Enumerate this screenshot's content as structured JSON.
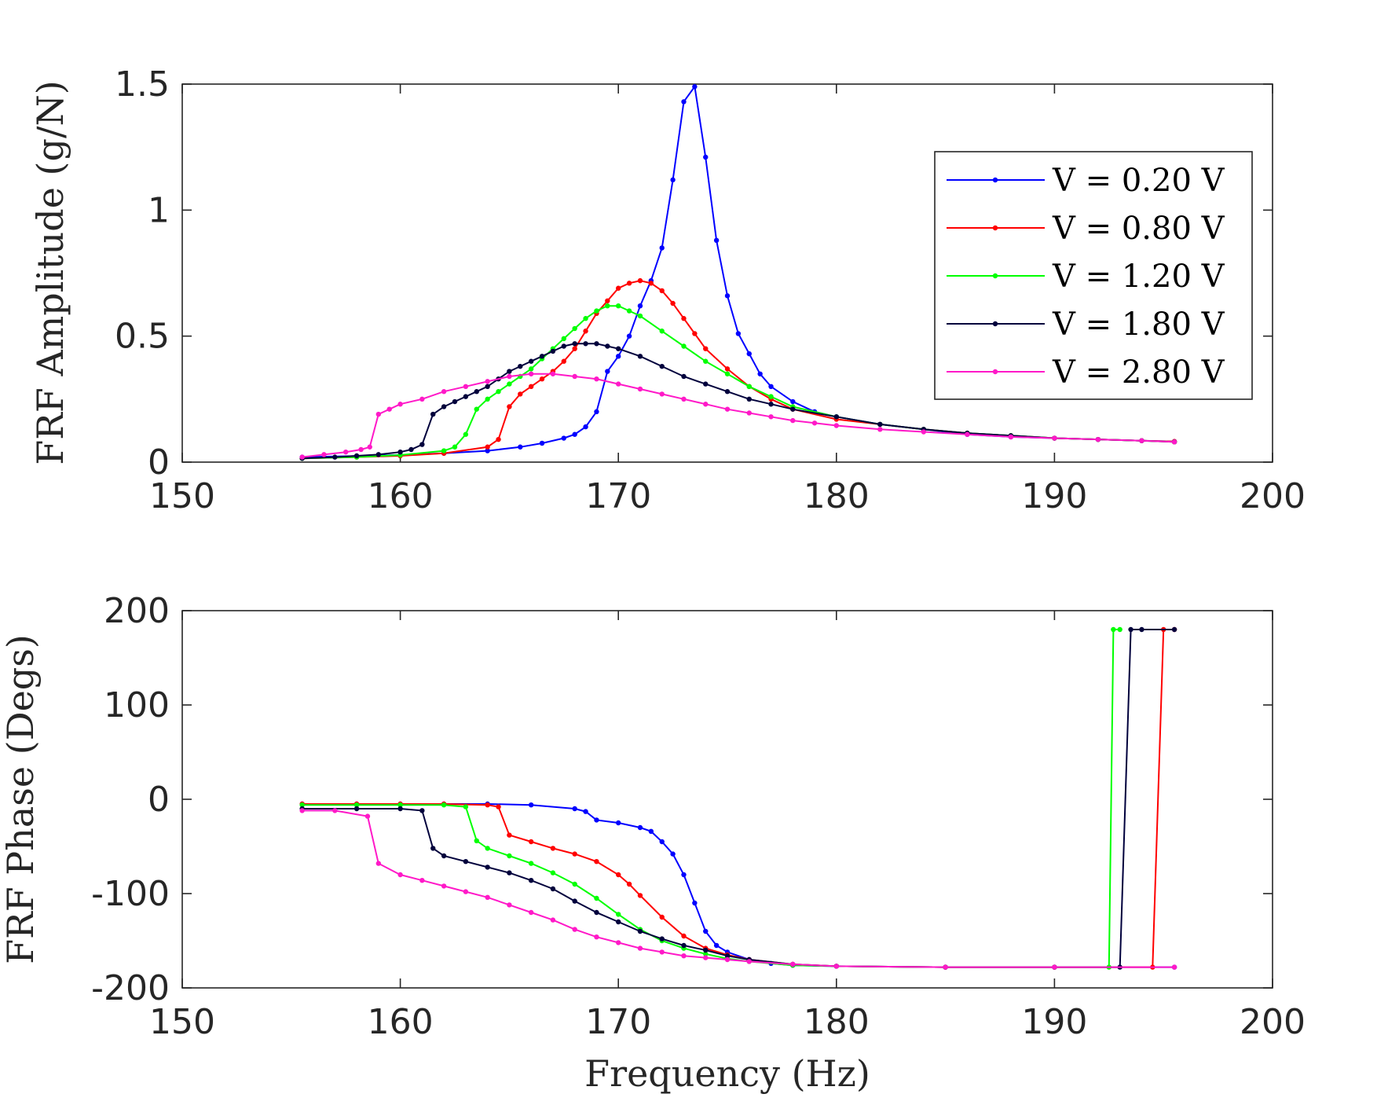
{
  "chart_data": [
    {
      "type": "line",
      "ylabel": "FRF Amplitude (g/N)",
      "xlabel": "",
      "xlim": [
        150,
        200
      ],
      "ylim": [
        0,
        1.5
      ],
      "xticks": [
        "150",
        "160",
        "170",
        "180",
        "190",
        "200"
      ],
      "yticks": [
        "0",
        "0.5",
        "1",
        "1.5"
      ],
      "grid": false,
      "legend_position": "top-right",
      "series": [
        {
          "name": "V = 0.20 V",
          "color": "#0000ff",
          "x": [
            155.5,
            158,
            160,
            162,
            164,
            165.5,
            166.5,
            167.5,
            168,
            168.5,
            169,
            169.5,
            170,
            170.5,
            171,
            171.5,
            172,
            172.5,
            173,
            173.5,
            174,
            174.5,
            175,
            175.5,
            176,
            176.5,
            177,
            178,
            179,
            180,
            182,
            184,
            186,
            188,
            190,
            192,
            194,
            195.5
          ],
          "y": [
            0.02,
            0.024,
            0.028,
            0.035,
            0.045,
            0.06,
            0.075,
            0.095,
            0.11,
            0.14,
            0.2,
            0.36,
            0.42,
            0.5,
            0.62,
            0.72,
            0.85,
            1.12,
            1.43,
            1.49,
            1.21,
            0.88,
            0.66,
            0.51,
            0.43,
            0.35,
            0.3,
            0.24,
            0.2,
            0.18,
            0.15,
            0.13,
            0.11,
            0.1,
            0.095,
            0.09,
            0.085,
            0.082
          ]
        },
        {
          "name": "V = 0.80 V",
          "color": "#ff0000",
          "x": [
            155.5,
            158,
            160,
            162,
            164,
            164.5,
            165,
            165.5,
            166,
            166.5,
            167,
            167.5,
            168,
            168.5,
            169,
            169.5,
            170,
            170.5,
            171,
            171.5,
            172,
            172.5,
            173,
            173.5,
            174,
            175,
            176,
            177,
            178,
            180,
            182,
            184,
            186,
            188,
            190,
            192,
            194,
            195.5
          ],
          "y": [
            0.015,
            0.02,
            0.025,
            0.035,
            0.06,
            0.09,
            0.22,
            0.27,
            0.3,
            0.33,
            0.36,
            0.4,
            0.45,
            0.52,
            0.59,
            0.64,
            0.69,
            0.71,
            0.72,
            0.71,
            0.68,
            0.63,
            0.57,
            0.51,
            0.45,
            0.37,
            0.3,
            0.25,
            0.21,
            0.17,
            0.15,
            0.13,
            0.115,
            0.105,
            0.095,
            0.09,
            0.085,
            0.082
          ]
        },
        {
          "name": "V = 1.20 V",
          "color": "#00ff00",
          "x": [
            155.5,
            158,
            160,
            162,
            162.5,
            163,
            163.5,
            164,
            164.5,
            165,
            165.5,
            166,
            166.5,
            167,
            167.5,
            168,
            168.5,
            169,
            169.5,
            170,
            170.5,
            171,
            172,
            173,
            174,
            175,
            176,
            177,
            178,
            180,
            182,
            184,
            186,
            188,
            190,
            192,
            194,
            195.5
          ],
          "y": [
            0.015,
            0.02,
            0.028,
            0.045,
            0.06,
            0.11,
            0.21,
            0.25,
            0.28,
            0.31,
            0.34,
            0.37,
            0.41,
            0.45,
            0.49,
            0.53,
            0.57,
            0.6,
            0.62,
            0.62,
            0.6,
            0.58,
            0.52,
            0.46,
            0.4,
            0.35,
            0.3,
            0.26,
            0.22,
            0.18,
            0.15,
            0.13,
            0.115,
            0.105,
            0.095,
            0.09,
            0.085,
            0.08
          ]
        },
        {
          "name": "V = 1.80 V",
          "color": "#00003c",
          "x": [
            155.5,
            157,
            158,
            159,
            160,
            160.5,
            161,
            161.5,
            162,
            162.5,
            163,
            163.5,
            164,
            164.5,
            165,
            165.5,
            166,
            166.5,
            167,
            167.5,
            168,
            168.5,
            169,
            169.5,
            170,
            171,
            172,
            173,
            174,
            175,
            176,
            177,
            178,
            180,
            182,
            184,
            186,
            188,
            190,
            192,
            194,
            195.5
          ],
          "y": [
            0.015,
            0.02,
            0.025,
            0.03,
            0.04,
            0.05,
            0.07,
            0.19,
            0.22,
            0.24,
            0.26,
            0.28,
            0.3,
            0.33,
            0.36,
            0.38,
            0.4,
            0.42,
            0.44,
            0.46,
            0.47,
            0.47,
            0.47,
            0.46,
            0.45,
            0.42,
            0.38,
            0.34,
            0.31,
            0.28,
            0.25,
            0.23,
            0.21,
            0.18,
            0.15,
            0.13,
            0.115,
            0.105,
            0.095,
            0.09,
            0.085,
            0.08
          ]
        },
        {
          "name": "V = 2.80 V",
          "color": "#ff19c8",
          "x": [
            155.5,
            156.5,
            157.5,
            158.2,
            158.6,
            159,
            159.5,
            160,
            161,
            162,
            163,
            164,
            165,
            166,
            167,
            168,
            169,
            170,
            171,
            172,
            173,
            174,
            175,
            176,
            177,
            178,
            179,
            180,
            182,
            184,
            186,
            188,
            190,
            192,
            194,
            195.5
          ],
          "y": [
            0.02,
            0.03,
            0.04,
            0.05,
            0.06,
            0.19,
            0.21,
            0.23,
            0.25,
            0.28,
            0.3,
            0.32,
            0.34,
            0.35,
            0.35,
            0.34,
            0.33,
            0.31,
            0.29,
            0.27,
            0.25,
            0.23,
            0.21,
            0.195,
            0.18,
            0.165,
            0.155,
            0.145,
            0.13,
            0.12,
            0.11,
            0.1,
            0.095,
            0.09,
            0.085,
            0.08
          ]
        }
      ]
    },
    {
      "type": "line",
      "ylabel": "FRF Phase (Degs)",
      "xlabel": "Frequency (Hz)",
      "xlim": [
        150,
        200
      ],
      "ylim": [
        -200,
        200
      ],
      "xticks": [
        "150",
        "160",
        "170",
        "180",
        "190",
        "200"
      ],
      "yticks": [
        "-200",
        "-100",
        "0",
        "100",
        "200"
      ],
      "grid": false,
      "series": [
        {
          "name": "V = 0.20 V",
          "color": "#0000ff",
          "x": [
            155.5,
            158,
            160,
            162,
            164,
            166,
            168,
            168.5,
            169,
            170,
            171,
            171.5,
            172,
            172.5,
            173,
            173.5,
            174,
            174.5,
            175,
            176,
            177,
            178,
            180,
            185,
            190,
            195.5
          ],
          "y": [
            -5,
            -5,
            -5,
            -5,
            -5,
            -6,
            -10,
            -13,
            -22,
            -25,
            -30,
            -34,
            -45,
            -58,
            -80,
            -110,
            -140,
            -155,
            -162,
            -170,
            -174,
            -176,
            -177,
            -178,
            -178,
            -178
          ]
        },
        {
          "name": "V = 0.80 V",
          "color": "#ff0000",
          "x": [
            155.5,
            158,
            160,
            162,
            164,
            164.5,
            165,
            166,
            167,
            168,
            169,
            170,
            170.5,
            171,
            172,
            173,
            174,
            175,
            176,
            178,
            180,
            185,
            190,
            194.5,
            195,
            195.5
          ],
          "y": [
            -5,
            -5,
            -5,
            -5,
            -6,
            -8,
            -38,
            -45,
            -52,
            -58,
            -66,
            -80,
            -90,
            -102,
            -125,
            -145,
            -158,
            -165,
            -170,
            -175,
            -177,
            -178,
            -178,
            -178,
            180,
            180
          ]
        },
        {
          "name": "V = 1.20 V",
          "color": "#00ff00",
          "x": [
            155.5,
            158,
            160,
            162,
            163,
            163.5,
            164,
            165,
            166,
            167,
            168,
            169,
            170,
            171,
            172,
            173,
            174,
            175,
            176,
            178,
            180,
            185,
            190,
            192.5,
            192.7,
            193
          ],
          "y": [
            -6,
            -6,
            -6,
            -6,
            -8,
            -44,
            -52,
            -60,
            -68,
            -78,
            -90,
            -105,
            -122,
            -138,
            -150,
            -158,
            -164,
            -169,
            -172,
            -176,
            -177,
            -178,
            -178,
            -178,
            180,
            180
          ]
        },
        {
          "name": "V = 1.80 V",
          "color": "#00003c",
          "x": [
            155.5,
            158,
            160,
            161,
            161.5,
            162,
            163,
            164,
            165,
            166,
            167,
            168,
            169,
            170,
            171,
            172,
            173,
            174,
            175,
            176,
            178,
            180,
            185,
            190,
            193,
            193.5,
            194,
            195.5
          ],
          "y": [
            -10,
            -10,
            -10,
            -12,
            -52,
            -60,
            -66,
            -72,
            -78,
            -86,
            -95,
            -108,
            -120,
            -130,
            -140,
            -148,
            -155,
            -160,
            -166,
            -170,
            -175,
            -177,
            -178,
            -178,
            -178,
            180,
            180,
            180
          ]
        },
        {
          "name": "V = 2.80 V",
          "color": "#ff19c8",
          "x": [
            155.5,
            157,
            158.5,
            159,
            160,
            161,
            162,
            163,
            164,
            165,
            166,
            167,
            168,
            169,
            170,
            171,
            172,
            173,
            174,
            175,
            176,
            178,
            180,
            185,
            190,
            195.5
          ],
          "y": [
            -12,
            -12,
            -18,
            -68,
            -80,
            -86,
            -92,
            -98,
            -104,
            -112,
            -120,
            -128,
            -138,
            -146,
            -152,
            -158,
            -162,
            -166,
            -168,
            -170,
            -172,
            -175,
            -177,
            -178,
            -178,
            -178
          ]
        }
      ]
    }
  ]
}
